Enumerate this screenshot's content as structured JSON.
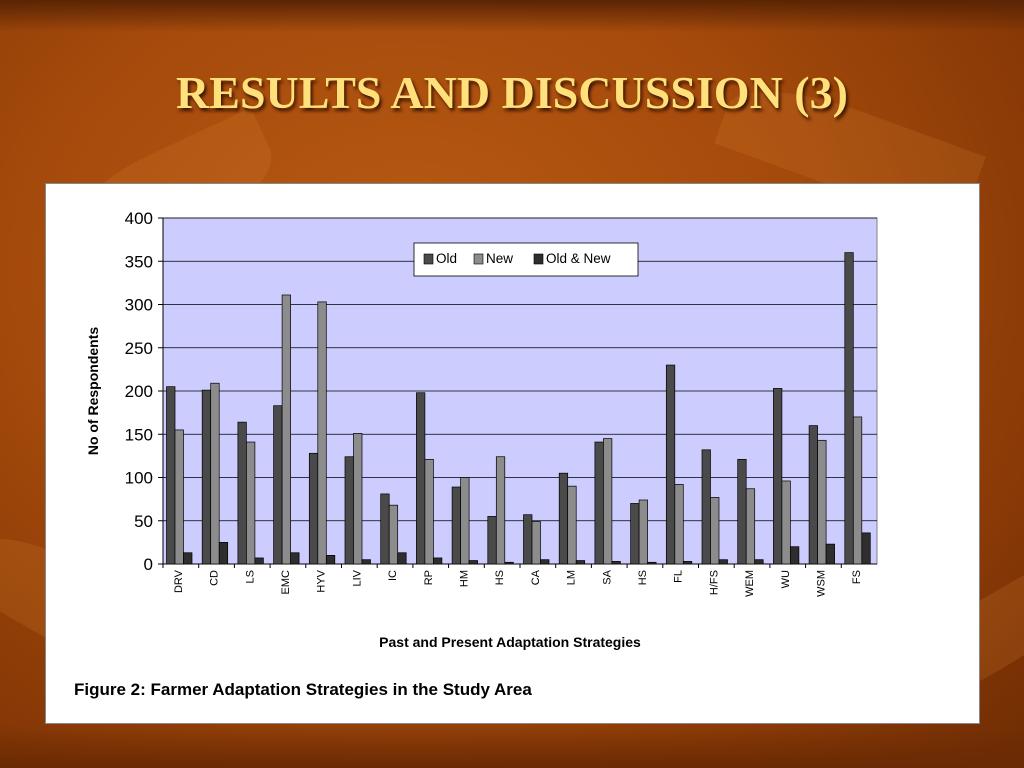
{
  "slide": {
    "title": "RESULTS AND DISCUSSION (3)",
    "caption": "Figure 2: Farmer Adaptation Strategies in the Study Area"
  },
  "colors": {
    "plot_background": "#ccccff",
    "old": "#4a4a4a",
    "new": "#8c8c8c",
    "old_new": "#2e2e2e",
    "title": "#ffe07a"
  },
  "chart_data": {
    "type": "bar",
    "xlabel": "Past and Present Adaptation Strategies",
    "ylabel": "No of Respondents",
    "ylim": [
      0,
      400
    ],
    "yticks": [
      0,
      50,
      100,
      150,
      200,
      250,
      300,
      350,
      400
    ],
    "grid": true,
    "legend_position": "top-center",
    "categories": [
      "DRV",
      "CD",
      "LS",
      "EMC",
      "HYV",
      "LIV",
      "IC",
      "RP",
      "HM",
      "HS",
      "CA",
      "LM",
      "SA",
      "HS",
      "FL",
      "H/FS",
      "WEM",
      "WU",
      "WSM",
      "FS"
    ],
    "series": [
      {
        "name": "Old",
        "values": [
          205,
          201,
          164,
          183,
          128,
          124,
          81,
          198,
          89,
          55,
          57,
          105,
          141,
          70,
          230,
          132,
          121,
          203,
          160,
          360
        ]
      },
      {
        "name": "New",
        "values": [
          155,
          209,
          141,
          311,
          303,
          151,
          68,
          121,
          100,
          124,
          49,
          90,
          145,
          74,
          92,
          77,
          87,
          96,
          143,
          170
        ]
      },
      {
        "name": "Old & New",
        "values": [
          13,
          25,
          7,
          13,
          10,
          5,
          13,
          7,
          4,
          2,
          5,
          4,
          3,
          2,
          3,
          5,
          5,
          20,
          23,
          36
        ]
      }
    ]
  }
}
